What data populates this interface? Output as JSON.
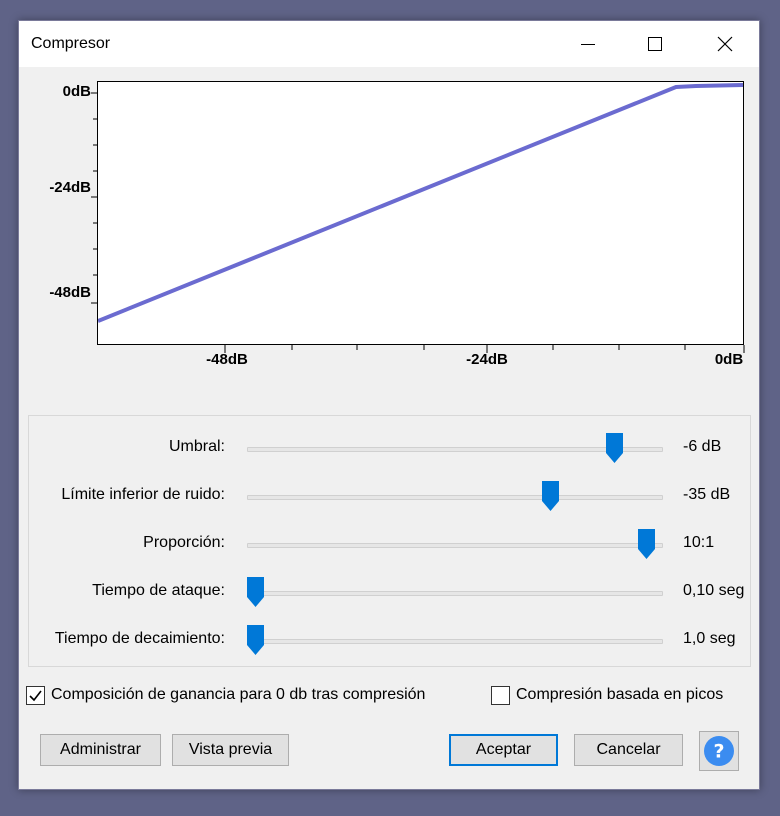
{
  "window": {
    "title": "Compresor"
  },
  "titlebar_controls": {
    "minimize": "minimize-icon",
    "maximize": "maximize-icon",
    "close": "close-icon"
  },
  "graph": {
    "y_labels": [
      "0dB",
      "-24dB",
      "-48dB"
    ],
    "x_labels": [
      "-48dB",
      "-24dB",
      "0dB"
    ],
    "line_color": "#6b6bd0"
  },
  "controls": [
    {
      "label": "Umbral:",
      "value": "-6 dB",
      "position": 0.9
    },
    {
      "label": "Límite inferior de ruido:",
      "value": "-35 dB",
      "position": 0.74
    },
    {
      "label": "Proporción:",
      "value": "10:1",
      "position": 0.98
    },
    {
      "label": "Tiempo de ataque:",
      "value": "0,10 seg",
      "position": 0.0
    },
    {
      "label": "Tiempo de decaimiento:",
      "value": "1,0 seg",
      "position": 0.0
    }
  ],
  "options": {
    "makeup_gain": {
      "label": "Composición de ganancia para 0 db tras compresión",
      "checked": true
    },
    "peak_compression": {
      "label": "Compresión basada en picos",
      "checked": false
    }
  },
  "buttons": {
    "manage": "Administrar",
    "preview": "Vista previa",
    "ok": "Aceptar",
    "cancel": "Cancelar",
    "help": "?"
  },
  "colors": {
    "accent": "#0078d7",
    "curve": "#6b6bd0",
    "help_icon": "#3b8cf0"
  }
}
